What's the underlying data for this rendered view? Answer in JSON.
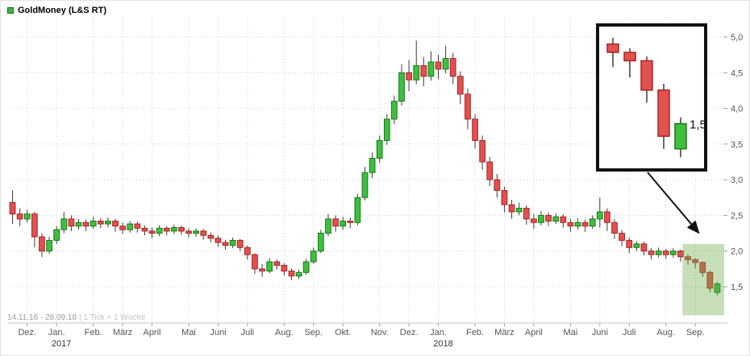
{
  "legend": {
    "label": "GoldMoney (L&S RT)",
    "swatch_color": "#3cb83c"
  },
  "footer": {
    "range": "14.11.16 - 28.09.18",
    "separator": "|",
    "tick_info": "1 Tick = 1 Woche"
  },
  "inset": {
    "price_label": "1,5",
    "from": 92,
    "to": 96
  },
  "colors": {
    "up_fill": "#3fbf3f",
    "up_stroke": "#157a15",
    "down_fill": "#e25050",
    "down_stroke": "#a62626",
    "wick": "#3a3a3a",
    "grid": "#d9d9d9",
    "axis_text": "#555555",
    "year_text": "#333333",
    "highlight": "rgba(105,170,70,0.38)"
  },
  "chart_data": {
    "type": "candlestick",
    "title": "GoldMoney (L&S RT)",
    "date_range": "14.11.16 - 28.09.18",
    "timeframe": "1 Tick = 1 Woche",
    "ylim": [
      1.1,
      5.1
    ],
    "grid": true,
    "y_ticks": [
      {
        "v": 5.0,
        "label": "5,0"
      },
      {
        "v": 4.5,
        "label": "4,5"
      },
      {
        "v": 4.0,
        "label": "4,0"
      },
      {
        "v": 3.5,
        "label": "3,5"
      },
      {
        "v": 3.0,
        "label": "3,0"
      },
      {
        "v": 2.5,
        "label": "2,5"
      },
      {
        "v": 2.0,
        "label": "2,0"
      },
      {
        "v": 1.5,
        "label": "1,5"
      }
    ],
    "x_ticks": [
      {
        "i": 2,
        "label": "Dez."
      },
      {
        "i": 6,
        "label": "Jan.",
        "year": "2017"
      },
      {
        "i": 11,
        "label": "Feb."
      },
      {
        "i": 15,
        "label": "März"
      },
      {
        "i": 19,
        "label": "April"
      },
      {
        "i": 24,
        "label": "Mai"
      },
      {
        "i": 28,
        "label": "Juni"
      },
      {
        "i": 32,
        "label": "Juli"
      },
      {
        "i": 37,
        "label": "Aug."
      },
      {
        "i": 41,
        "label": "Sep."
      },
      {
        "i": 45,
        "label": "Okt."
      },
      {
        "i": 50,
        "label": "Nov."
      },
      {
        "i": 54,
        "label": "Dez."
      },
      {
        "i": 58,
        "label": "Jan.",
        "year": "2018"
      },
      {
        "i": 63,
        "label": "Feb."
      },
      {
        "i": 67,
        "label": "März"
      },
      {
        "i": 71,
        "label": "April"
      },
      {
        "i": 76,
        "label": "Mai"
      },
      {
        "i": 80,
        "label": "Juni"
      },
      {
        "i": 84,
        "label": "Juli"
      },
      {
        "i": 89,
        "label": "Aug."
      },
      {
        "i": 93,
        "label": "Sep."
      }
    ],
    "candle_format": [
      "open",
      "high",
      "low",
      "close"
    ],
    "candles": [
      [
        2.68,
        2.85,
        2.38,
        2.52
      ],
      [
        2.52,
        2.6,
        2.35,
        2.45
      ],
      [
        2.45,
        2.58,
        2.4,
        2.52
      ],
      [
        2.52,
        2.55,
        2.05,
        2.2
      ],
      [
        2.2,
        2.25,
        1.92,
        2.0
      ],
      [
        2.0,
        2.2,
        1.96,
        2.15
      ],
      [
        2.15,
        2.35,
        2.1,
        2.3
      ],
      [
        2.3,
        2.55,
        2.25,
        2.45
      ],
      [
        2.45,
        2.5,
        2.28,
        2.35
      ],
      [
        2.35,
        2.45,
        2.3,
        2.4
      ],
      [
        2.4,
        2.44,
        2.28,
        2.35
      ],
      [
        2.35,
        2.48,
        2.31,
        2.42
      ],
      [
        2.42,
        2.46,
        2.32,
        2.38
      ],
      [
        2.38,
        2.47,
        2.33,
        2.42
      ],
      [
        2.42,
        2.45,
        2.27,
        2.35
      ],
      [
        2.35,
        2.4,
        2.24,
        2.3
      ],
      [
        2.3,
        2.42,
        2.26,
        2.38
      ],
      [
        2.38,
        2.41,
        2.26,
        2.32
      ],
      [
        2.32,
        2.36,
        2.22,
        2.28
      ],
      [
        2.28,
        2.33,
        2.18,
        2.25
      ],
      [
        2.25,
        2.36,
        2.21,
        2.32
      ],
      [
        2.32,
        2.35,
        2.22,
        2.28
      ],
      [
        2.28,
        2.37,
        2.24,
        2.33
      ],
      [
        2.33,
        2.36,
        2.23,
        2.28
      ],
      [
        2.28,
        2.32,
        2.19,
        2.25
      ],
      [
        2.25,
        2.32,
        2.2,
        2.28
      ],
      [
        2.28,
        2.31,
        2.16,
        2.22
      ],
      [
        2.22,
        2.26,
        2.12,
        2.18
      ],
      [
        2.18,
        2.22,
        2.06,
        2.12
      ],
      [
        2.12,
        2.16,
        2.02,
        2.08
      ],
      [
        2.08,
        2.19,
        2.04,
        2.15
      ],
      [
        2.15,
        2.17,
        2.0,
        2.05
      ],
      [
        2.05,
        2.08,
        1.88,
        1.95
      ],
      [
        1.95,
        1.97,
        1.68,
        1.75
      ],
      [
        1.75,
        1.82,
        1.64,
        1.72
      ],
      [
        1.72,
        1.9,
        1.69,
        1.85
      ],
      [
        1.85,
        1.88,
        1.74,
        1.8
      ],
      [
        1.8,
        1.83,
        1.66,
        1.72
      ],
      [
        1.72,
        1.76,
        1.59,
        1.65
      ],
      [
        1.65,
        1.74,
        1.61,
        1.7
      ],
      [
        1.7,
        1.89,
        1.67,
        1.85
      ],
      [
        1.85,
        2.05,
        1.82,
        2.0
      ],
      [
        2.0,
        2.3,
        1.97,
        2.25
      ],
      [
        2.25,
        2.52,
        2.21,
        2.45
      ],
      [
        2.45,
        2.5,
        2.27,
        2.35
      ],
      [
        2.35,
        2.48,
        2.3,
        2.42
      ],
      [
        2.42,
        2.47,
        2.32,
        2.4
      ],
      [
        2.4,
        2.8,
        2.36,
        2.75
      ],
      [
        2.75,
        3.18,
        2.71,
        3.1
      ],
      [
        3.1,
        3.38,
        3.02,
        3.3
      ],
      [
        3.3,
        3.62,
        3.24,
        3.55
      ],
      [
        3.55,
        3.92,
        3.49,
        3.85
      ],
      [
        3.85,
        4.18,
        3.78,
        4.1
      ],
      [
        4.1,
        4.62,
        4.04,
        4.5
      ],
      [
        4.5,
        4.68,
        4.24,
        4.4
      ],
      [
        4.4,
        4.95,
        4.34,
        4.6
      ],
      [
        4.6,
        4.72,
        4.31,
        4.45
      ],
      [
        4.45,
        4.8,
        4.39,
        4.65
      ],
      [
        4.65,
        4.75,
        4.41,
        4.55
      ],
      [
        4.55,
        4.88,
        4.49,
        4.7
      ],
      [
        4.7,
        4.78,
        4.34,
        4.45
      ],
      [
        4.45,
        4.52,
        4.06,
        4.2
      ],
      [
        4.2,
        4.28,
        3.71,
        3.85
      ],
      [
        3.85,
        3.92,
        3.44,
        3.55
      ],
      [
        3.55,
        3.62,
        3.14,
        3.25
      ],
      [
        3.25,
        3.32,
        2.91,
        3.0
      ],
      [
        3.0,
        3.08,
        2.75,
        2.85
      ],
      [
        2.85,
        2.9,
        2.54,
        2.65
      ],
      [
        2.65,
        2.72,
        2.45,
        2.55
      ],
      [
        2.55,
        2.68,
        2.5,
        2.6
      ],
      [
        2.6,
        2.64,
        2.37,
        2.45
      ],
      [
        2.45,
        2.52,
        2.31,
        2.4
      ],
      [
        2.4,
        2.56,
        2.36,
        2.5
      ],
      [
        2.5,
        2.54,
        2.35,
        2.42
      ],
      [
        2.42,
        2.53,
        2.38,
        2.48
      ],
      [
        2.48,
        2.52,
        2.33,
        2.4
      ],
      [
        2.4,
        2.45,
        2.27,
        2.35
      ],
      [
        2.35,
        2.46,
        2.3,
        2.4
      ],
      [
        2.4,
        2.44,
        2.27,
        2.35
      ],
      [
        2.35,
        2.5,
        2.31,
        2.45
      ],
      [
        2.45,
        2.75,
        2.33,
        2.55
      ],
      [
        2.55,
        2.6,
        2.28,
        2.4
      ],
      [
        2.4,
        2.45,
        2.17,
        2.25
      ],
      [
        2.25,
        2.3,
        2.07,
        2.15
      ],
      [
        2.15,
        2.19,
        1.97,
        2.05
      ],
      [
        2.05,
        2.14,
        2.0,
        2.1
      ],
      [
        2.1,
        2.13,
        1.94,
        2.0
      ],
      [
        2.0,
        2.04,
        1.88,
        1.95
      ],
      [
        1.95,
        2.05,
        1.91,
        2.0
      ],
      [
        2.0,
        2.03,
        1.89,
        1.95
      ],
      [
        1.95,
        2.04,
        1.91,
        2.0
      ],
      [
        2.0,
        2.02,
        1.85,
        1.92
      ],
      [
        1.92,
        1.95,
        1.81,
        1.88
      ],
      [
        1.88,
        1.9,
        1.76,
        1.84
      ],
      [
        1.84,
        1.86,
        1.64,
        1.7
      ],
      [
        1.7,
        1.73,
        1.42,
        1.48
      ],
      [
        1.42,
        1.57,
        1.38,
        1.54
      ]
    ],
    "highlight": {
      "from": 92,
      "to": 96,
      "price_top": 2.1,
      "price_bottom": 1.1
    }
  }
}
